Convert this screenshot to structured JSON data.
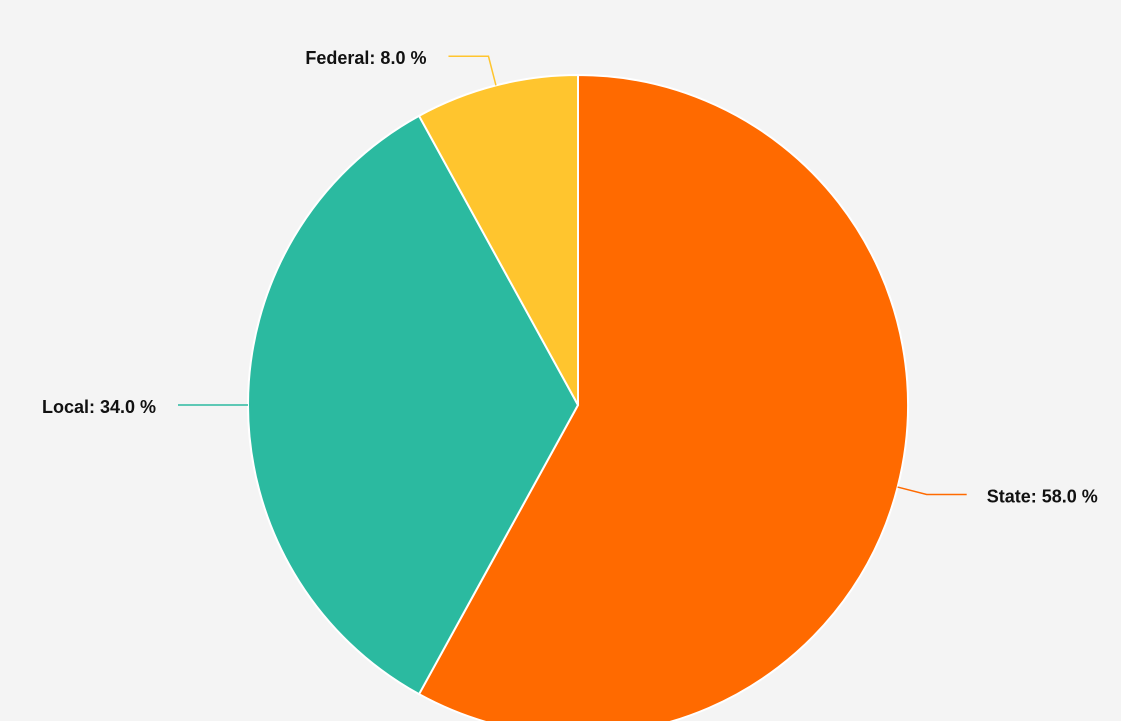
{
  "chart_data": {
    "type": "pie",
    "values": [
      58,
      34,
      8
    ],
    "value_labels": [
      "State: 58.0 %",
      "Local: 34.0 %",
      "Federal: 8.0 %"
    ],
    "colors": [
      "#ff6a00",
      "#2bbaa0",
      "#ffc52e"
    ]
  }
}
